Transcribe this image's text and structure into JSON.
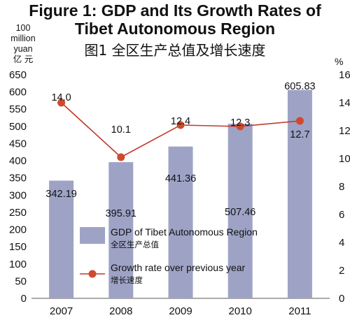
{
  "title_en": "Figure 1: GDP and Its Growth Rates of\nTibet Autonomous Region",
  "title_cn": "图1  全区生产总值及增长速度",
  "left_unit": "100\nmillion\nyuan\n亿 元",
  "right_unit": "%",
  "colors": {
    "bar": "#9ea3c6",
    "line": "#c0392b",
    "point": "#cf4a2c"
  },
  "chart_data": {
    "type": "bar",
    "categories": [
      "2007",
      "2008",
      "2009",
      "2010",
      "2011"
    ],
    "series": [
      {
        "name": "GDP of Tibet Autonomous Region",
        "name_cn": "全区生产总值",
        "type": "bar",
        "axis": "left",
        "values": [
          342.19,
          395.91,
          441.36,
          507.46,
          605.83
        ],
        "labels": [
          "342.19",
          "395.91",
          "441.36",
          "507.46",
          "605.83"
        ]
      },
      {
        "name": "Growth rate over previous year",
        "name_cn": "增长速度",
        "type": "line",
        "axis": "right",
        "values": [
          14.0,
          10.1,
          12.4,
          12.3,
          12.7
        ],
        "labels": [
          "14.0",
          "10.1",
          "12.4",
          "12.3",
          "12.7"
        ]
      }
    ],
    "y_left": {
      "range": [
        0,
        650
      ],
      "ticks": [
        "0",
        "50",
        "100",
        "150",
        "200",
        "250",
        "300",
        "350",
        "400",
        "450",
        "500",
        "550",
        "600",
        "650"
      ]
    },
    "y_right": {
      "range": [
        0,
        16
      ],
      "ticks": [
        "0",
        "2",
        "4",
        "6",
        "8",
        "10",
        "12",
        "14",
        "16"
      ]
    },
    "grid": false,
    "legend": "inside-lower-left"
  }
}
